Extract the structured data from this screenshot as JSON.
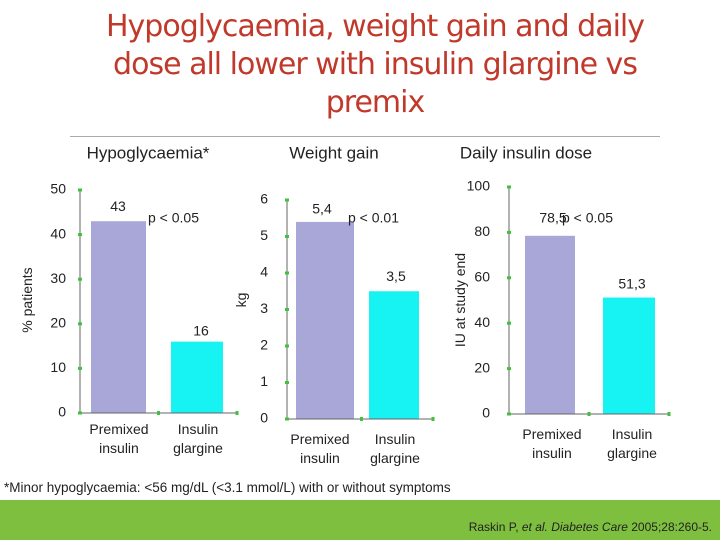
{
  "slide": {
    "title": "Hypoglycaemia, weight gain and daily dose all lower with insulin glargine vs premix",
    "footnote": "*Minor hypoglycaemia: <56 mg/dL (<3.1 mmol/L) with or without symptoms",
    "reference": {
      "authors": "Raskin P, ",
      "journal": "et al. Diabetes Care",
      "details": " 2005;28:260-5."
    }
  },
  "colors": {
    "title": "#c0392b",
    "premixed_bar": "#a9a6d8",
    "glargine_bar": "#17f2f2",
    "axis_tick": "#3fc23f",
    "band": "#7fbf3f"
  },
  "chart_data": [
    {
      "type": "bar",
      "title": "Hypoglycaemia*",
      "ylabel": "% patients",
      "categories": [
        "Premixed insulin",
        "Insulin glargine"
      ],
      "values": [
        43,
        16
      ],
      "data_labels": [
        "43",
        "16"
      ],
      "ylim": [
        0,
        50
      ],
      "ticks": [
        0,
        10,
        20,
        30,
        40,
        50
      ],
      "annotation": "p < 0.05",
      "grid": false
    },
    {
      "type": "bar",
      "title": "Weight gain",
      "ylabel": "kg",
      "categories": [
        "Premixed insulin",
        "Insulin glargine"
      ],
      "values": [
        5.4,
        3.5
      ],
      "data_labels": [
        "5,4",
        "3,5"
      ],
      "ylim": [
        0,
        6
      ],
      "ticks": [
        0,
        1,
        2,
        3,
        4,
        5,
        6
      ],
      "annotation": "p < 0.01",
      "grid": false
    },
    {
      "type": "bar",
      "title": "Daily insulin dose",
      "ylabel": "IU at study end",
      "categories": [
        "Premixed insulin",
        "Insulin glargine"
      ],
      "values": [
        78.5,
        51.3
      ],
      "data_labels": [
        "78,5",
        "51,3"
      ],
      "ylim": [
        0,
        100
      ],
      "ticks": [
        0,
        20,
        40,
        60,
        80,
        100
      ],
      "annotation": "p < 0.05",
      "grid": false
    }
  ]
}
